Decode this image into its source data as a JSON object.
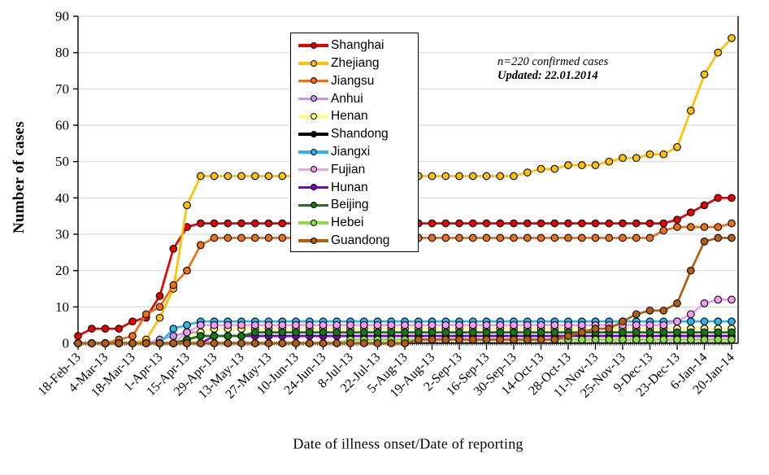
{
  "chart_data": {
    "type": "line",
    "title": "",
    "xlabel": "Date of illness onset/Date of reporting",
    "ylabel": "Number of cases",
    "ylim": [
      0,
      90
    ],
    "ytick_step": 10,
    "y_tick_labels": [
      "0",
      "10",
      "20",
      "30",
      "40",
      "50",
      "60",
      "70",
      "80",
      "90"
    ],
    "grid": "horizontal",
    "legend_position": "upper-left-inside",
    "annotation": {
      "line1": "n=220 confirmed cases",
      "line2": "Updated: 22.01.2014"
    },
    "x_dates": [
      "18-Feb-13",
      "25-Feb-13",
      "4-Mar-13",
      "11-Mar-13",
      "18-Mar-13",
      "25-Mar-13",
      "1-Apr-13",
      "8-Apr-13",
      "15-Apr-13",
      "22-Apr-13",
      "29-Apr-13",
      "6-May-13",
      "13-May-13",
      "20-May-13",
      "27-May-13",
      "3-Jun-13",
      "10-Jun-13",
      "17-Jun-13",
      "24-Jun-13",
      "1-Jul-13",
      "8-Jul-13",
      "15-Jul-13",
      "22-Jul-13",
      "29-Jul-13",
      "5-Aug-13",
      "12-Aug-13",
      "19-Aug-13",
      "26-Aug-13",
      "2-Sep-13",
      "9-Sep-13",
      "16-Sep-13",
      "23-Sep-13",
      "30-Sep-13",
      "7-Oct-13",
      "14-Oct-13",
      "21-Oct-13",
      "28-Oct-13",
      "4-Nov-13",
      "11-Nov-13",
      "18-Nov-13",
      "25-Nov-13",
      "2-Dec-13",
      "9-Dec-13",
      "16-Dec-13",
      "23-Dec-13",
      "30-Dec-13",
      "6-Jan-14",
      "13-Jan-14",
      "20-Jan-14"
    ],
    "x_tick_labels": [
      "18-Feb-13",
      "4-Mar-13",
      "18-Mar-13",
      "1-Apr-13",
      "15-Apr-13",
      "29-Apr-13",
      "13-May-13",
      "27-May-13",
      "10-Jun-13",
      "24-Jun-13",
      "8-Jul-13",
      "22-Jul-13",
      "5-Aug-13",
      "19-Aug-13",
      "2-Sep-13",
      "16-Sep-13",
      "30-Sep-13",
      "14-Oct-13",
      "28-Oct-13",
      "11-Nov-13",
      "25-Nov-13",
      "9-Dec-13",
      "23-Dec-13",
      "6-Jan-14",
      "20-Jan-14"
    ],
    "colors": {
      "gridline": "#D9D9D9",
      "axis": "#000000",
      "background": "#FFFFFF"
    },
    "series": [
      {
        "name": "Shanghai",
        "color": "#E60000",
        "values": [
          2,
          4,
          4,
          4,
          6,
          7,
          13,
          26,
          32,
          33,
          33,
          33,
          33,
          33,
          33,
          33,
          33,
          33,
          33,
          33,
          33,
          33,
          33,
          33,
          33,
          33,
          33,
          33,
          33,
          33,
          33,
          33,
          33,
          33,
          33,
          33,
          33,
          33,
          33,
          33,
          33,
          33,
          33,
          33,
          34,
          36,
          38,
          40,
          40
        ]
      },
      {
        "name": "Zhejiang",
        "color": "#FFC000",
        "values": [
          0,
          0,
          0,
          0,
          0,
          1,
          7,
          15,
          38,
          46,
          46,
          46,
          46,
          46,
          46,
          46,
          46,
          46,
          46,
          46,
          46,
          46,
          46,
          46,
          46,
          46,
          46,
          46,
          46,
          46,
          46,
          46,
          46,
          47,
          48,
          48,
          49,
          49,
          49,
          50,
          51,
          51,
          52,
          52,
          54,
          64,
          74,
          80,
          84
        ]
      },
      {
        "name": "Jiangsu",
        "color": "#EE7010",
        "values": [
          0,
          0,
          0,
          1,
          2,
          8,
          10,
          16,
          20,
          27,
          29,
          29,
          29,
          29,
          29,
          29,
          29,
          29,
          29,
          29,
          29,
          29,
          29,
          29,
          29,
          29,
          29,
          29,
          29,
          29,
          29,
          29,
          29,
          29,
          29,
          29,
          29,
          29,
          29,
          29,
          29,
          29,
          29,
          31,
          32,
          32,
          32,
          32,
          33
        ]
      },
      {
        "name": "Anhui",
        "color": "#C299E8",
        "values": [
          0,
          0,
          0,
          0,
          0,
          0,
          1,
          2,
          3,
          3,
          4,
          4,
          4,
          4,
          4,
          4,
          4,
          4,
          4,
          4,
          4,
          4,
          4,
          4,
          4,
          4,
          4,
          4,
          4,
          4,
          4,
          4,
          4,
          4,
          4,
          4,
          4,
          4,
          4,
          4,
          4,
          4,
          4,
          4,
          4,
          4,
          4,
          4,
          4
        ]
      },
      {
        "name": "Henan",
        "color": "#FFFF70",
        "values": [
          0,
          0,
          0,
          0,
          0,
          0,
          0,
          0,
          1,
          3,
          4,
          4,
          4,
          4,
          4,
          4,
          4,
          4,
          4,
          4,
          4,
          4,
          4,
          4,
          4,
          4,
          4,
          4,
          4,
          4,
          4,
          4,
          4,
          4,
          4,
          4,
          4,
          4,
          4,
          4,
          4,
          4,
          4,
          4,
          4,
          4,
          4,
          4,
          4
        ]
      },
      {
        "name": "Shandong",
        "color": "#000000",
        "values": [
          0,
          0,
          0,
          0,
          0,
          0,
          0,
          0,
          1,
          2,
          2,
          2,
          2,
          2,
          2,
          2,
          2,
          2,
          2,
          2,
          2,
          2,
          2,
          2,
          2,
          2,
          2,
          2,
          2,
          2,
          2,
          2,
          2,
          2,
          2,
          2,
          2,
          2,
          2,
          2,
          2,
          2,
          2,
          2,
          2,
          2,
          2,
          2,
          2
        ]
      },
      {
        "name": "Jiangxi",
        "color": "#29B6EA",
        "values": [
          0,
          0,
          0,
          0,
          0,
          0,
          0,
          4,
          5,
          6,
          6,
          6,
          6,
          6,
          6,
          6,
          6,
          6,
          6,
          6,
          6,
          6,
          6,
          6,
          6,
          6,
          6,
          6,
          6,
          6,
          6,
          6,
          6,
          6,
          6,
          6,
          6,
          6,
          6,
          6,
          6,
          6,
          6,
          6,
          6,
          6,
          6,
          6,
          6
        ]
      },
      {
        "name": "Fujian",
        "color": "#F79BF2",
        "values": [
          0,
          0,
          0,
          0,
          0,
          0,
          0,
          0,
          3,
          5,
          5,
          5,
          5,
          5,
          5,
          5,
          5,
          5,
          5,
          5,
          5,
          5,
          5,
          5,
          5,
          5,
          5,
          5,
          5,
          5,
          5,
          5,
          5,
          5,
          5,
          5,
          5,
          5,
          5,
          5,
          5,
          5,
          5,
          5,
          6,
          8,
          11,
          12,
          12
        ]
      },
      {
        "name": "Hunan",
        "color": "#7F00C8",
        "values": [
          0,
          0,
          0,
          0,
          0,
          0,
          0,
          0,
          0,
          0,
          2,
          2,
          2,
          2,
          2,
          2,
          2,
          2,
          2,
          2,
          2,
          2,
          2,
          2,
          2,
          2,
          2,
          2,
          2,
          2,
          2,
          2,
          2,
          2,
          2,
          2,
          2,
          2,
          2,
          2,
          2,
          2,
          2,
          2,
          2,
          2,
          2,
          2,
          2
        ]
      },
      {
        "name": "Beijing",
        "color": "#107C10",
        "values": [
          0,
          0,
          0,
          0,
          0,
          0,
          0,
          0,
          1,
          2,
          2,
          2,
          2,
          3,
          3,
          3,
          3,
          3,
          3,
          3,
          3,
          3,
          3,
          3,
          3,
          3,
          3,
          3,
          3,
          3,
          3,
          3,
          3,
          3,
          3,
          3,
          3,
          3,
          3,
          3,
          3,
          3,
          3,
          3,
          3,
          3,
          3,
          3,
          3
        ]
      },
      {
        "name": "Hebei",
        "color": "#8FDB3F",
        "values": [
          0,
          0,
          0,
          0,
          0,
          0,
          0,
          0,
          0,
          0,
          0,
          0,
          0,
          0,
          0,
          0,
          0,
          0,
          0,
          0,
          1,
          1,
          1,
          1,
          1,
          1,
          1,
          1,
          1,
          1,
          1,
          1,
          1,
          1,
          1,
          1,
          1,
          1,
          1,
          1,
          1,
          1,
          1,
          1,
          1,
          1,
          1,
          1,
          1
        ]
      },
      {
        "name": "Guandong",
        "color": "#B45F0E",
        "values": [
          0,
          0,
          0,
          0,
          0,
          0,
          0,
          0,
          0,
          0,
          0,
          0,
          0,
          0,
          0,
          0,
          0,
          0,
          0,
          0,
          0,
          0,
          0,
          0,
          0,
          1,
          1,
          1,
          1,
          1,
          1,
          1,
          1,
          1,
          1,
          1,
          2,
          3,
          4,
          4,
          6,
          8,
          9,
          9,
          11,
          20,
          28,
          29,
          29
        ]
      }
    ]
  }
}
